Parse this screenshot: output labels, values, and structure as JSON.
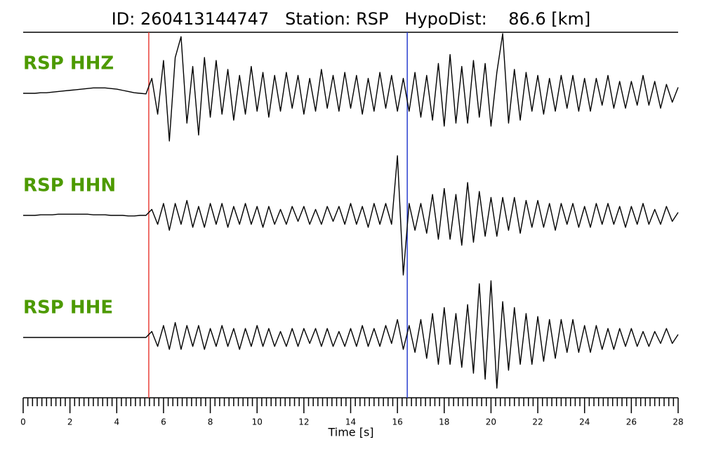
{
  "chart_data": {
    "type": "seismogram",
    "title": "ID: 260413144747   Station: RSP   HypoDist:    86.6 [km]",
    "xlabel": "Time [s]",
    "xlim": [
      0,
      28
    ],
    "xticks": [
      0,
      2,
      4,
      6,
      8,
      10,
      12,
      14,
      16,
      18,
      20,
      22,
      24,
      26,
      28
    ],
    "xminorticks": [
      0.2,
      0.4,
      0.6,
      0.8,
      1,
      1.2,
      1.4,
      1.6,
      1.8,
      2.2,
      2.4,
      2.6,
      2.8,
      3,
      3.2,
      3.4,
      3.6,
      3.8,
      4.2,
      4.4,
      4.6,
      4.8,
      5,
      5.2,
      5.4,
      5.6,
      5.8,
      6.2,
      6.4,
      6.6,
      6.8,
      7,
      7.2,
      7.4,
      7.6,
      7.8,
      8.2,
      8.4,
      8.6,
      8.8,
      9,
      9.2,
      9.4,
      9.6,
      9.8,
      10.2,
      10.4,
      10.6,
      10.8,
      11,
      11.2,
      11.4,
      11.6,
      11.8,
      12.2,
      12.4,
      12.6,
      12.8,
      13,
      13.2,
      13.4,
      13.6,
      13.8,
      14.2,
      14.4,
      14.6,
      14.8,
      15,
      15.2,
      15.4,
      15.6,
      15.8,
      16.2,
      16.4,
      16.6,
      16.8,
      17,
      17.2,
      17.4,
      17.6,
      17.8,
      18.2,
      18.4,
      18.6,
      18.8,
      19,
      19.2,
      19.4,
      19.6,
      19.8,
      20.2,
      20.4,
      20.6,
      20.8,
      21,
      21.2,
      21.4,
      21.6,
      21.8,
      22.2,
      22.4,
      22.6,
      22.8,
      23,
      23.2,
      23.4,
      23.6,
      23.8,
      24.2,
      24.4,
      24.6,
      24.8,
      25,
      25.2,
      25.4,
      25.6,
      25.8,
      26.2,
      26.4,
      26.6,
      26.8,
      27,
      27.2,
      27.4,
      27.6,
      27.8
    ],
    "label_color": "#4d9a00",
    "markers": [
      {
        "x": 5.37,
        "color": "#e8413a"
      },
      {
        "x": 16.42,
        "color": "#2a3fd0"
      }
    ],
    "x": [
      0,
      0.25,
      0.5,
      0.75,
      1,
      1.25,
      1.5,
      1.75,
      2,
      2.25,
      2.5,
      2.75,
      3,
      3.25,
      3.5,
      3.75,
      4,
      4.25,
      4.5,
      4.75,
      5,
      5.25,
      5.5,
      5.75,
      6,
      6.25,
      6.5,
      6.75,
      7,
      7.25,
      7.5,
      7.75,
      8,
      8.25,
      8.5,
      8.75,
      9,
      9.25,
      9.5,
      9.75,
      10,
      10.25,
      10.5,
      10.75,
      11,
      11.25,
      11.5,
      11.75,
      12,
      12.25,
      12.5,
      12.75,
      13,
      13.25,
      13.5,
      13.75,
      14,
      14.25,
      14.5,
      14.75,
      15,
      15.25,
      15.5,
      15.75,
      16,
      16.25,
      16.5,
      16.75,
      17,
      17.25,
      17.5,
      17.75,
      18,
      18.25,
      18.5,
      18.75,
      19,
      19.25,
      19.5,
      19.75,
      20,
      20.25,
      20.5,
      20.75,
      21,
      21.25,
      21.5,
      21.75,
      22,
      22.25,
      22.5,
      22.75,
      23,
      23.25,
      23.5,
      23.75,
      24,
      24.25,
      24.5,
      24.75,
      25,
      25.25,
      25.5,
      25.75,
      26,
      26.25,
      26.5,
      26.75,
      27,
      27.25,
      27.5,
      27.75,
      28
    ],
    "series": [
      {
        "name": "RSP HHZ",
        "color": "#000000",
        "values": [
          0,
          0,
          0,
          0.01,
          0.01,
          0.02,
          0.03,
          0.04,
          0.05,
          0.06,
          0.07,
          0.08,
          0.09,
          0.09,
          0.09,
          0.08,
          0.07,
          0.05,
          0.03,
          0.01,
          0,
          -0.01,
          0.25,
          -0.35,
          0.55,
          -0.8,
          0.6,
          0.95,
          -0.5,
          0.45,
          -0.7,
          0.6,
          -0.4,
          0.55,
          -0.35,
          0.4,
          -0.45,
          0.3,
          -0.35,
          0.45,
          -0.3,
          0.35,
          -0.4,
          0.3,
          -0.3,
          0.35,
          -0.25,
          0.3,
          -0.35,
          0.25,
          -0.3,
          0.4,
          -0.25,
          0.3,
          -0.3,
          0.35,
          -0.25,
          0.3,
          -0.35,
          0.25,
          -0.3,
          0.35,
          -0.25,
          0.3,
          -0.3,
          0.25,
          -0.3,
          0.35,
          -0.4,
          0.3,
          -0.45,
          0.5,
          -0.55,
          0.65,
          -0.5,
          0.45,
          -0.5,
          0.55,
          -0.4,
          0.5,
          -0.55,
          0.35,
          1.0,
          -0.5,
          0.4,
          -0.45,
          0.35,
          -0.3,
          0.3,
          -0.35,
          0.25,
          -0.3,
          0.3,
          -0.25,
          0.3,
          -0.3,
          0.25,
          -0.3,
          0.25,
          -0.2,
          0.3,
          -0.25,
          0.2,
          -0.25,
          0.2,
          -0.2,
          0.3,
          -0.2,
          0.2,
          -0.25,
          0.15,
          -0.15,
          0.1
        ]
      },
      {
        "name": "RSP HHN",
        "color": "#000000",
        "values": [
          0,
          0,
          0,
          0.01,
          0.01,
          0.01,
          0.02,
          0.02,
          0.02,
          0.02,
          0.02,
          0.02,
          0.01,
          0.01,
          0.01,
          0,
          0,
          0,
          -0.01,
          -0.01,
          0,
          0,
          0.1,
          -0.15,
          0.2,
          -0.25,
          0.2,
          -0.15,
          0.25,
          -0.2,
          0.15,
          -0.2,
          0.2,
          -0.15,
          0.2,
          -0.2,
          0.15,
          -0.15,
          0.2,
          -0.15,
          0.15,
          -0.2,
          0.15,
          -0.15,
          0.1,
          -0.15,
          0.15,
          -0.1,
          0.15,
          -0.15,
          0.1,
          -0.15,
          0.15,
          -0.1,
          0.15,
          -0.15,
          0.2,
          -0.15,
          0.15,
          -0.2,
          0.2,
          -0.15,
          0.2,
          -0.15,
          1.0,
          -1.0,
          0.2,
          -0.25,
          0.2,
          -0.3,
          0.35,
          -0.4,
          0.45,
          -0.4,
          0.35,
          -0.5,
          0.55,
          -0.45,
          0.4,
          -0.35,
          0.3,
          -0.35,
          0.3,
          -0.25,
          0.3,
          -0.3,
          0.25,
          -0.2,
          0.25,
          -0.2,
          0.2,
          -0.25,
          0.2,
          -0.15,
          0.2,
          -0.2,
          0.15,
          -0.2,
          0.2,
          -0.15,
          0.2,
          -0.15,
          0.15,
          -0.2,
          0.15,
          -0.15,
          0.2,
          -0.15,
          0.1,
          -0.15,
          0.15,
          -0.1,
          0.05
        ]
      },
      {
        "name": "RSP HHE",
        "color": "#000000",
        "values": [
          0,
          0,
          0,
          0,
          0,
          0,
          0,
          0,
          0,
          0,
          0,
          0,
          0,
          0,
          0,
          0,
          0,
          0,
          0,
          0,
          0,
          0,
          0.1,
          -0.15,
          0.2,
          -0.2,
          0.25,
          -0.2,
          0.2,
          -0.15,
          0.2,
          -0.2,
          0.15,
          -0.15,
          0.2,
          -0.15,
          0.15,
          -0.2,
          0.15,
          -0.15,
          0.2,
          -0.15,
          0.15,
          -0.15,
          0.1,
          -0.15,
          0.15,
          -0.15,
          0.15,
          -0.1,
          0.15,
          -0.15,
          0.15,
          -0.15,
          0.1,
          -0.15,
          0.15,
          -0.15,
          0.2,
          -0.15,
          0.15,
          -0.15,
          0.2,
          -0.1,
          0.3,
          -0.2,
          0.2,
          -0.25,
          0.3,
          -0.35,
          0.4,
          -0.45,
          0.5,
          -0.45,
          0.4,
          -0.5,
          0.55,
          -0.6,
          0.9,
          -0.7,
          0.95,
          -0.85,
          0.6,
          -0.55,
          0.5,
          -0.45,
          0.4,
          -0.45,
          0.35,
          -0.4,
          0.3,
          -0.35,
          0.3,
          -0.25,
          0.3,
          -0.25,
          0.2,
          -0.25,
          0.2,
          -0.2,
          0.15,
          -0.2,
          0.15,
          -0.15,
          0.15,
          -0.15,
          0.1,
          -0.15,
          0.1,
          -0.1,
          0.15,
          -0.1,
          0.05
        ]
      }
    ]
  }
}
